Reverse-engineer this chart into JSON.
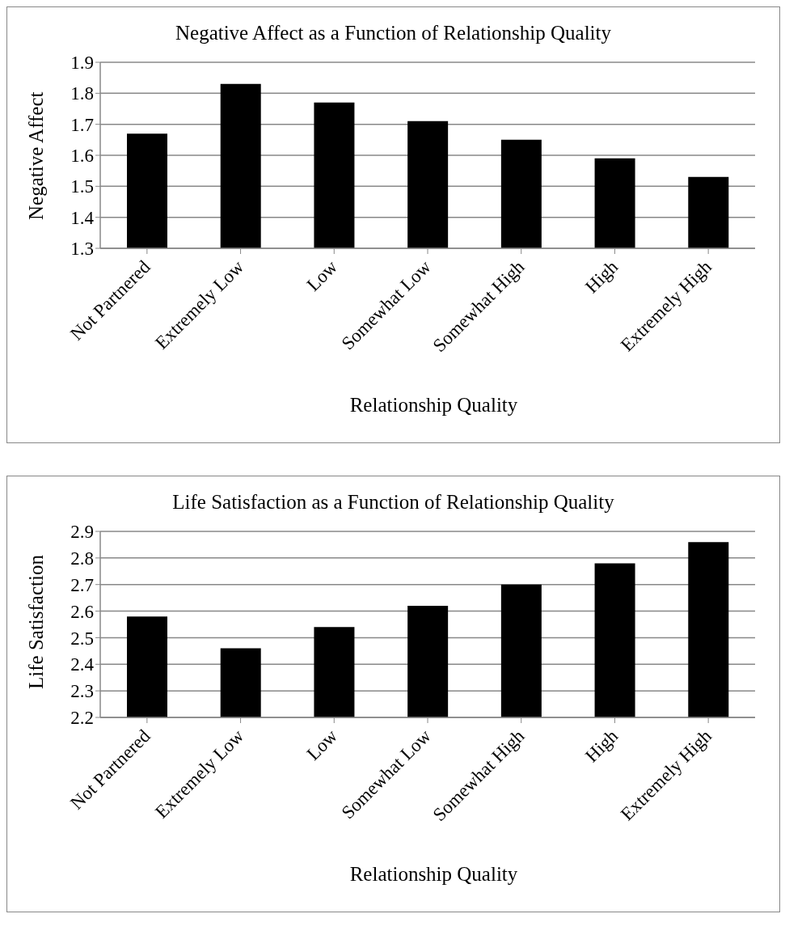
{
  "chart_data": [
    {
      "type": "bar",
      "title": "Negative Affect as a Function of Relationship Quality",
      "xlabel": "Relationship Quality",
      "ylabel": "Negative Affect",
      "categories": [
        "Not Partnered",
        "Extremely Low",
        "Low",
        "Somewhat Low",
        "Somewhat High",
        "High",
        "Extremely High"
      ],
      "series": [
        {
          "color": "#000000",
          "values": [
            1.67,
            1.83,
            1.77,
            1.71,
            1.65,
            1.59,
            1.53
          ]
        }
      ],
      "ylim": [
        1.3,
        1.9
      ],
      "yticks": [
        {
          "value": 1.3,
          "label": "1.3"
        },
        {
          "value": 1.4,
          "label": "1.4"
        },
        {
          "value": 1.5,
          "label": "1.5"
        },
        {
          "value": 1.6,
          "label": "1.6"
        },
        {
          "value": 1.7,
          "label": "1.7"
        },
        {
          "value": 1.8,
          "label": "1.8"
        },
        {
          "value": 1.9,
          "label": "1.9"
        }
      ],
      "grid": "y"
    },
    {
      "type": "bar",
      "title": "Life Satisfaction as a Function of Relationship Quality",
      "xlabel": "Relationship Quality",
      "ylabel": "Life Satisfaction",
      "categories": [
        "Not Partnered",
        "Extremely Low",
        "Low",
        "Somewhat Low",
        "Somewhat High",
        "High",
        "Extremely High"
      ],
      "series": [
        {
          "color": "#000000",
          "values": [
            2.58,
            2.46,
            2.54,
            2.62,
            2.7,
            2.78,
            2.86
          ]
        }
      ],
      "ylim": [
        2.2,
        2.9
      ],
      "yticks": [
        {
          "value": 2.2,
          "label": "2.2"
        },
        {
          "value": 2.3,
          "label": "2.3"
        },
        {
          "value": 2.4,
          "label": "2.4"
        },
        {
          "value": 2.5,
          "label": "2.5"
        },
        {
          "value": 2.6,
          "label": "2.6"
        },
        {
          "value": 2.7,
          "label": "2.7"
        },
        {
          "value": 2.8,
          "label": "2.8"
        },
        {
          "value": 2.9,
          "label": "2.9"
        }
      ],
      "grid": "y"
    }
  ]
}
